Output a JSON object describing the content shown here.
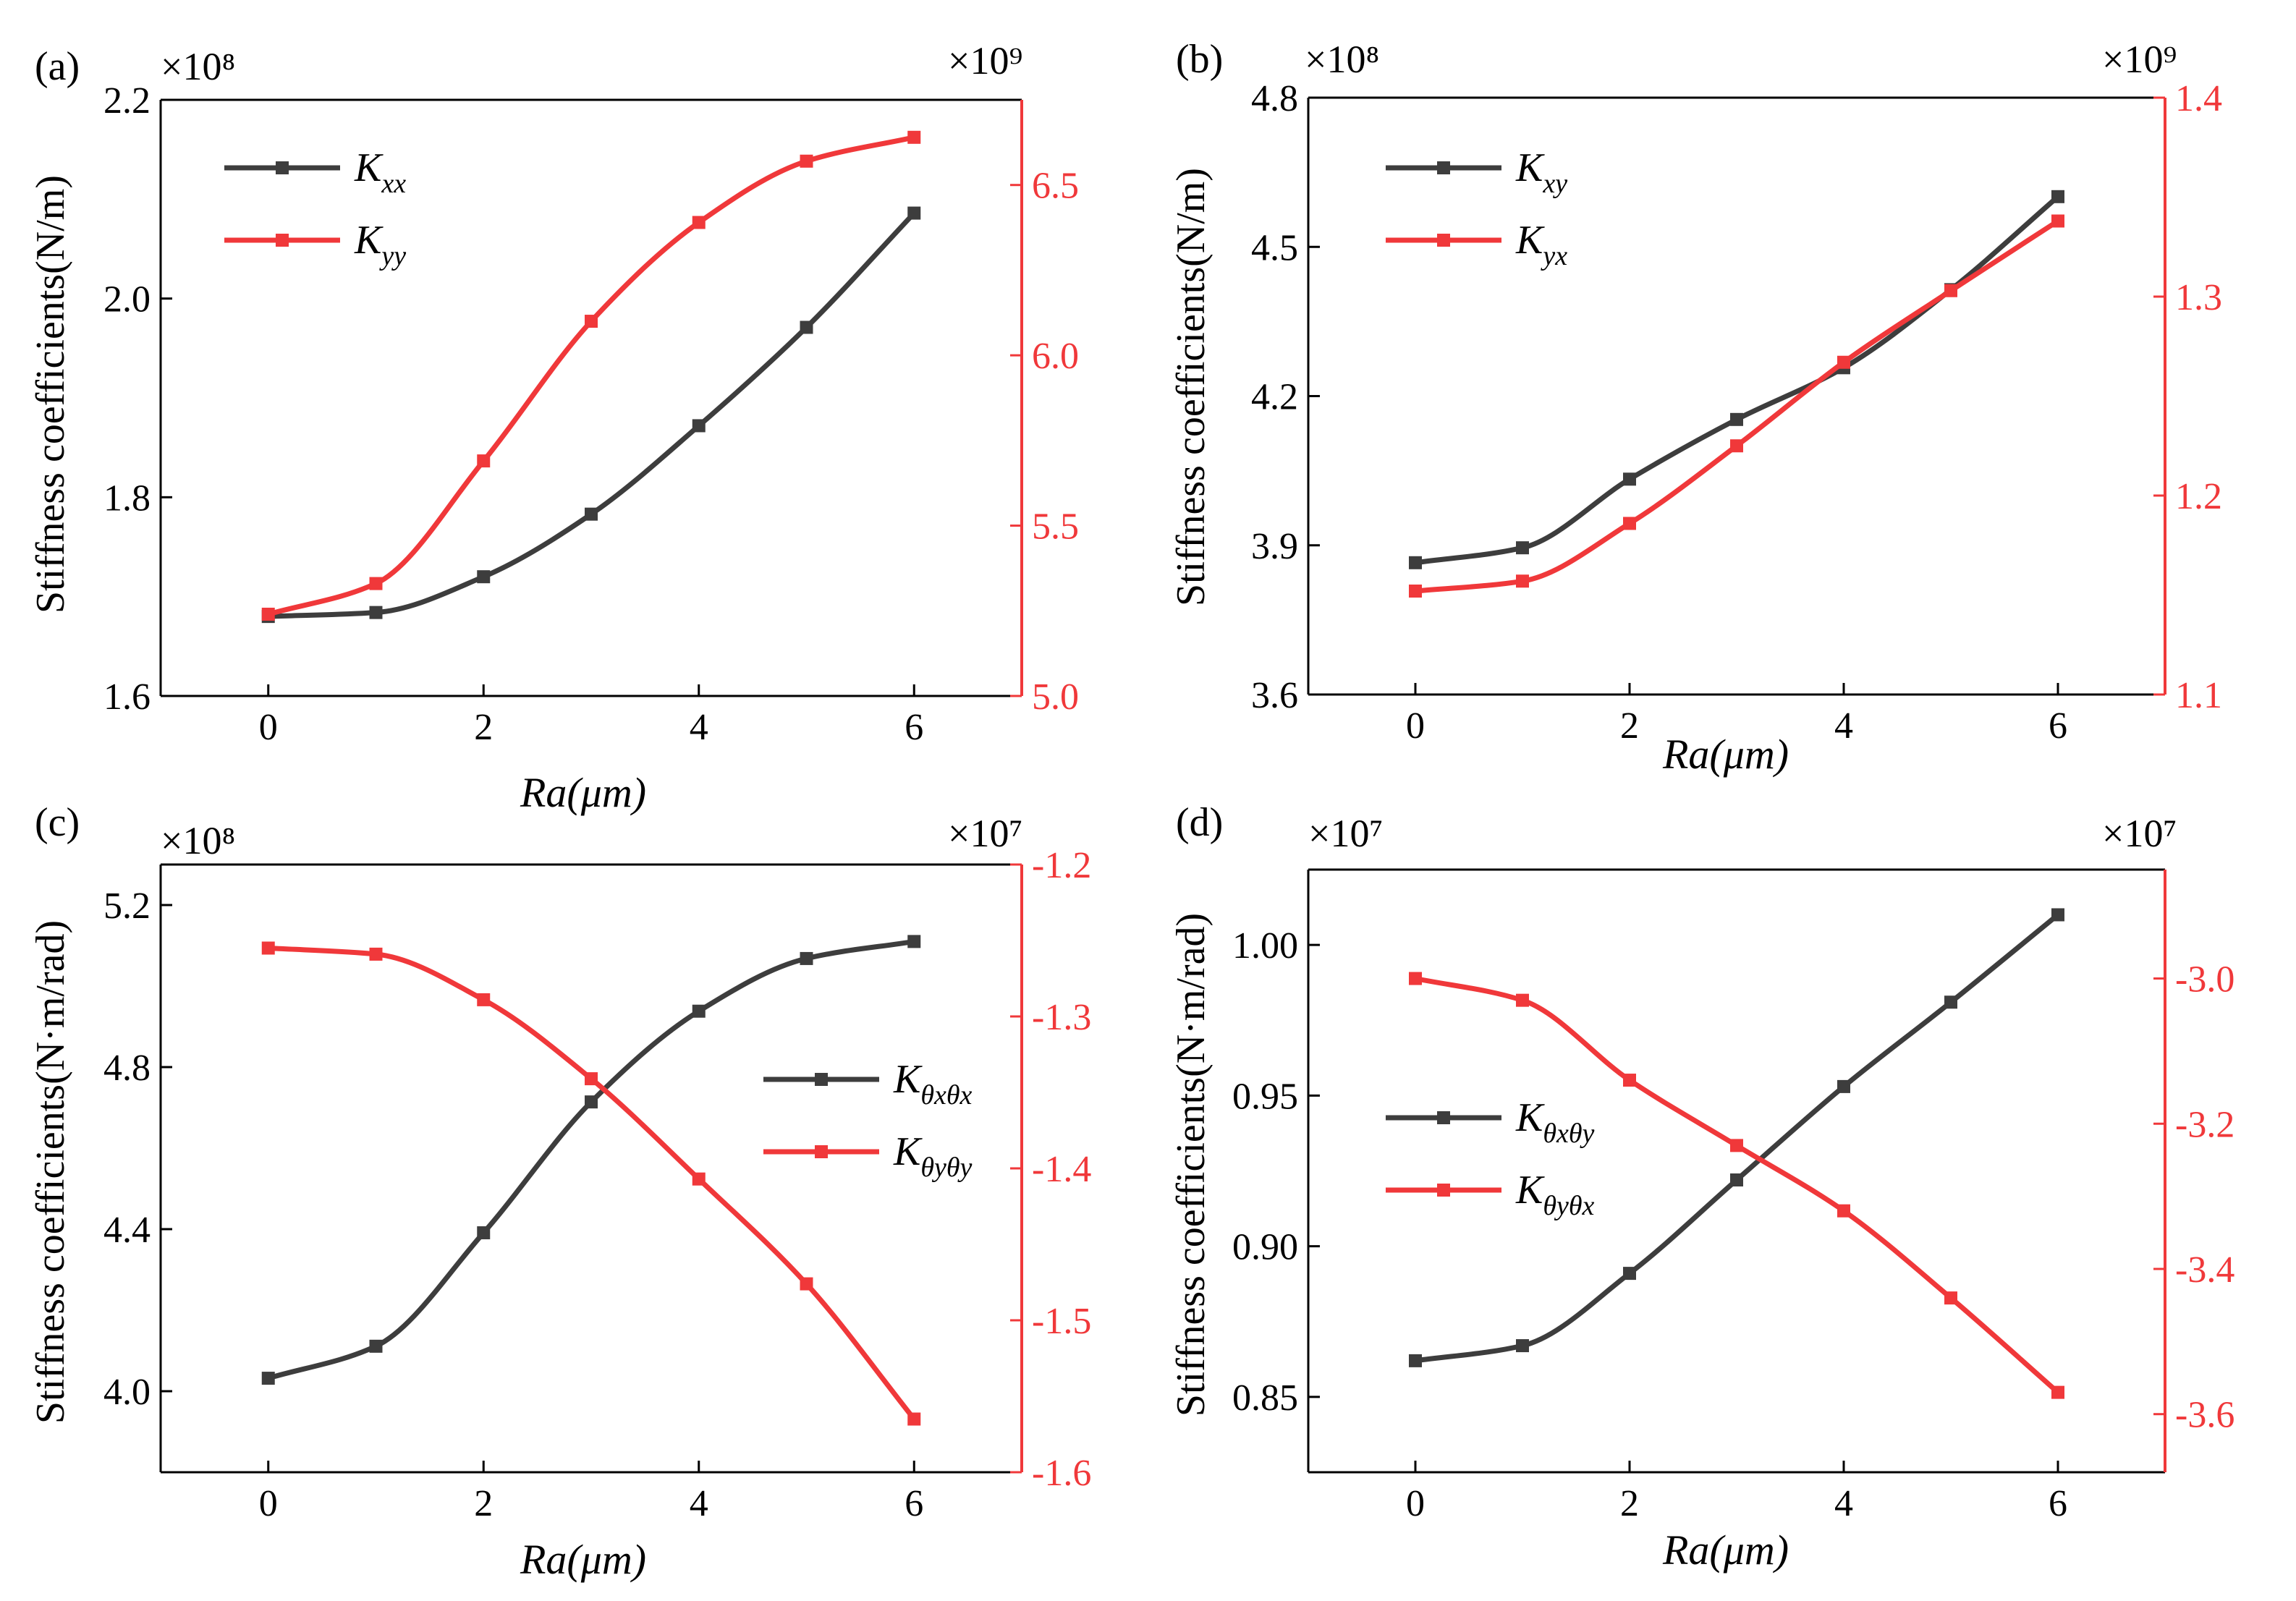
{
  "figure": {
    "colors": {
      "left": "#3d3d3d",
      "right": "#f0383a"
    }
  },
  "chart_data": [
    {
      "type": "line",
      "panel": "(a)",
      "xlabel": "Ra(μm)",
      "ylabel": "Stiffness coefficients(N/m)",
      "x": [
        0,
        1,
        2,
        3,
        4,
        5,
        6
      ],
      "xlim": [
        -1,
        7
      ],
      "x_ticks": [
        "0",
        "2",
        "4",
        "6"
      ],
      "left_axis": {
        "multiplier": "×10⁸",
        "ylim": [
          1.6,
          2.2
        ],
        "ticks": [
          "1.6",
          "1.8",
          "2.0",
          "2.2"
        ]
      },
      "right_axis": {
        "multiplier": "×10⁹",
        "ylim": [
          5.0,
          6.75
        ],
        "ticks": [
          "5.0",
          "5.5",
          "6.0",
          "6.5"
        ]
      },
      "legend_position": "top-left",
      "series": [
        {
          "name": "Kxx",
          "symbol": "K",
          "sub": "xx",
          "axis": "left",
          "values": [
            1.68,
            1.684,
            1.72,
            1.783,
            1.872,
            1.971,
            2.086
          ]
        },
        {
          "name": "Kyy",
          "symbol": "K",
          "sub": "yy",
          "axis": "right",
          "values": [
            5.24,
            5.33,
            5.69,
            6.1,
            6.39,
            6.57,
            6.64
          ]
        }
      ]
    },
    {
      "type": "line",
      "panel": "(b)",
      "xlabel": "Ra(μm)",
      "ylabel": "Stiffness coefficients(N/m)",
      "x": [
        0,
        1,
        2,
        3,
        4,
        5,
        6
      ],
      "xlim": [
        -1,
        7
      ],
      "x_ticks": [
        "0",
        "2",
        "4",
        "6"
      ],
      "left_axis": {
        "multiplier": "×10⁸",
        "ylim": [
          3.6,
          4.8
        ],
        "ticks": [
          "3.6",
          "3.9",
          "4.2",
          "4.5",
          "4.8"
        ]
      },
      "right_axis": {
        "multiplier": "×10⁹",
        "ylim": [
          1.1,
          1.4
        ],
        "ticks": [
          "1.1",
          "1.2",
          "1.3",
          "1.4"
        ]
      },
      "legend_position": "top-left",
      "series": [
        {
          "name": "Kxy",
          "symbol": "K",
          "sub": "xy",
          "axis": "left",
          "values": [
            3.865,
            3.895,
            4.033,
            4.153,
            4.257,
            4.414,
            4.601
          ]
        },
        {
          "name": "Kyx",
          "symbol": "K",
          "sub": "yx",
          "axis": "right",
          "values": [
            1.152,
            1.157,
            1.186,
            1.225,
            1.267,
            1.303,
            1.338
          ]
        }
      ]
    },
    {
      "type": "line",
      "panel": "(c)",
      "xlabel": "Ra(μm)",
      "ylabel": "Stiffness coefficients(N·m/rad)",
      "x": [
        0,
        1,
        2,
        3,
        4,
        5,
        6
      ],
      "xlim": [
        -1,
        7
      ],
      "x_ticks": [
        "0",
        "2",
        "4",
        "6"
      ],
      "left_axis": {
        "multiplier": "×10⁸",
        "ylim": [
          3.8,
          5.3
        ],
        "ticks": [
          "4.0",
          "4.4",
          "4.8",
          "5.2"
        ]
      },
      "right_axis": {
        "multiplier": "×10⁷",
        "ylim": [
          -1.6,
          -1.2
        ],
        "ticks": [
          "-1.2",
          "-1.3",
          "-1.4",
          "-1.5",
          "-1.6"
        ]
      },
      "legend_position": "center-right",
      "series": [
        {
          "name": "Kθxθx",
          "symbol": "K",
          "sub": "θxθx",
          "axis": "left",
          "values": [
            4.032,
            4.111,
            4.391,
            4.714,
            4.938,
            5.068,
            5.11
          ]
        },
        {
          "name": "Kθyθy",
          "symbol": "K",
          "sub": "θyθy",
          "axis": "right",
          "values": [
            -1.255,
            -1.259,
            -1.289,
            -1.341,
            -1.407,
            -1.476,
            -1.565
          ]
        }
      ]
    },
    {
      "type": "line",
      "panel": "(d)",
      "xlabel": "Ra(μm)",
      "ylabel": "Stiffness coefficients(N·m/rad)",
      "x": [
        0,
        1,
        2,
        3,
        4,
        5,
        6
      ],
      "xlim": [
        -1,
        7
      ],
      "x_ticks": [
        "0",
        "2",
        "4",
        "6"
      ],
      "left_axis": {
        "multiplier": "×10⁷",
        "ylim": [
          0.825,
          1.025
        ],
        "ticks": [
          "0.85",
          "0.90",
          "0.95",
          "1.00"
        ]
      },
      "right_axis": {
        "multiplier": "×10⁷",
        "ylim": [
          -3.68,
          -2.85
        ],
        "ticks": [
          "-3.0",
          "-3.2",
          "-3.4",
          "-3.6"
        ]
      },
      "legend_position": "center-left",
      "series": [
        {
          "name": "Kθxθy",
          "symbol": "K",
          "sub": "θxθy",
          "axis": "left",
          "values": [
            0.862,
            0.867,
            0.891,
            0.922,
            0.953,
            0.981,
            1.01
          ]
        },
        {
          "name": "Kθyθx",
          "symbol": "K",
          "sub": "θyθx",
          "axis": "right",
          "values": [
            -3.0,
            -3.03,
            -3.14,
            -3.23,
            -3.32,
            -3.44,
            -3.57
          ]
        }
      ]
    }
  ]
}
